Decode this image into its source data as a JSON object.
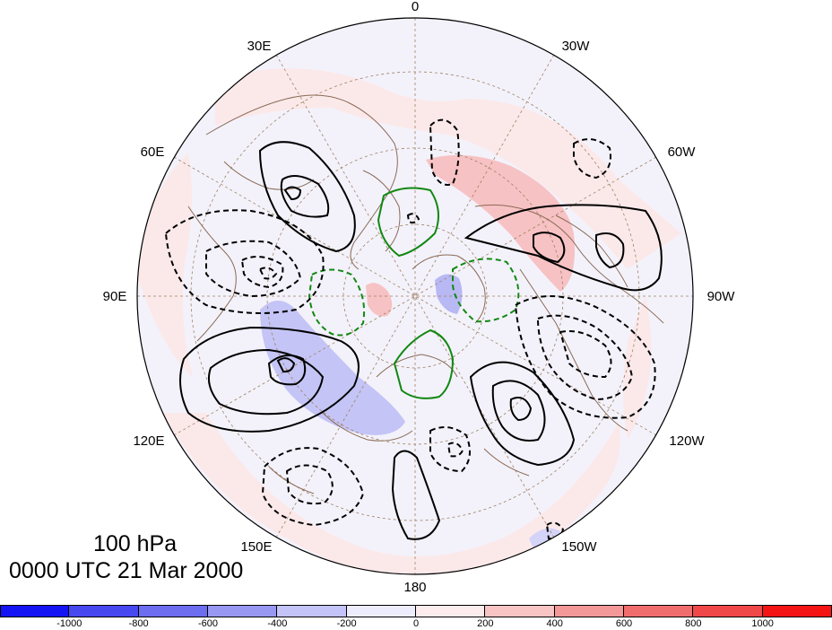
{
  "map": {
    "projection": "north-polar-stereographic",
    "longitude_labels": {
      "top": "0",
      "top_right": "30W",
      "right_upper": "60W",
      "right": "90W",
      "right_lower": "120W",
      "bottom_right": "150W",
      "bottom": "180",
      "bottom_left": "150E",
      "left_lower": "120E",
      "left": "90E",
      "left_upper": "60E",
      "top_left": "30E"
    },
    "coastline_color": "#8b6a55",
    "graticule_color": "#a08060",
    "solid_contour_color": "#000000",
    "dashed_contour_color": "#000000",
    "zero_contour_color": "#118811"
  },
  "title": {
    "level": "100 hPa",
    "time": "0000 UTC 21 Mar 2000"
  },
  "colorbar": {
    "colors": [
      "#1414f5",
      "#4848f0",
      "#6d6df0",
      "#9898f2",
      "#c4c4f8",
      "#ececfc",
      "#fdecec",
      "#f8c4c4",
      "#f29898",
      "#f06d6d",
      "#f04848",
      "#f51414"
    ],
    "labels": [
      "-1000",
      "-800",
      "-600",
      "-400",
      "-200",
      "0",
      "200",
      "400",
      "600",
      "800",
      "1000"
    ]
  }
}
